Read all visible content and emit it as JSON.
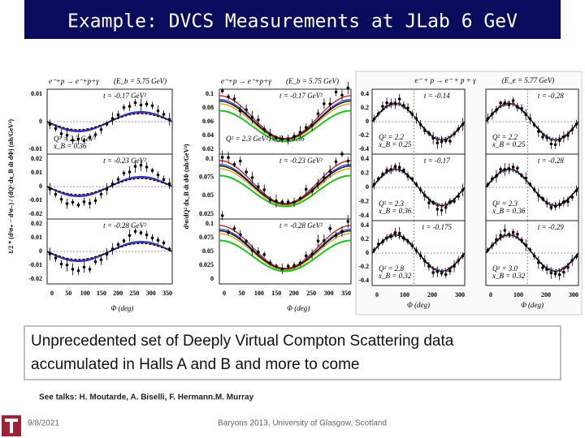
{
  "header": {
    "title": "Example: DVCS Measurements at JLab 6 GeV"
  },
  "figures": [
    {
      "reaction": "e⁻+p → e⁻+p+γ",
      "beam": "(E_b = 5.75 GeV)",
      "y_label": "1/2 * (d⁴σ₊ − d⁴σ₋) / (dQ² dx_B dt dΦ) (nb/GeV⁴)",
      "x_label": "Φ (deg)",
      "x_ticks": [
        "0",
        "50",
        "100",
        "150",
        "200",
        "250",
        "300",
        "350"
      ],
      "panels": [
        {
          "t": "t = -0.17 GeV²",
          "y_ticks": [
            "0.01",
            "0",
            "-0.01"
          ],
          "kinematics": [
            "Q² = 2.3 GeV²",
            "x_B = 0.36"
          ]
        },
        {
          "t": "t = -0.23 GeV²",
          "y_ticks": [
            "0.02",
            "0.01",
            "0",
            "-0.01",
            "-0.02"
          ]
        },
        {
          "t": "t = -0.28 GeV²",
          "y_ticks": [
            "0.02",
            "0.01",
            "0",
            "-0.01",
            "-0.02"
          ]
        }
      ]
    },
    {
      "reaction": "e⁻+p → e⁻+p+γ",
      "beam": "(E_b = 5.75 GeV)",
      "y_label": "d⁴σ/dQ² dx_B dt dΦ (nb/GeV⁴)",
      "x_label": "Φ (deg)",
      "x_ticks": [
        "0",
        "50",
        "100",
        "150",
        "200",
        "250",
        "300",
        "350"
      ],
      "panels": [
        {
          "t": "t = -0.17 GeV²",
          "y_ticks": [
            "0.1",
            "0.08",
            "0.06",
            "0.04",
            "0.02"
          ],
          "kinematics": [
            "Q² = 2.3 GeV², x_B = 0.36"
          ]
        },
        {
          "t": "t = -0.23 GeV²",
          "y_ticks": [
            "0.1",
            "0.075",
            "0.05",
            "0.025"
          ]
        },
        {
          "t": "t = -0.28 GeV²",
          "y_ticks": [
            "0.1",
            "0.075",
            "0.05",
            "0.025",
            "0"
          ]
        }
      ]
    },
    {
      "reaction": "e⁻ + p → e⁻ + p + γ",
      "beam": "(E_e = 5.77 GeV)",
      "x_label": "Φ (deg)",
      "x_ticks": [
        "0",
        "100",
        "200",
        "300"
      ],
      "y_ticks": [
        "0.4",
        "0.2",
        "0",
        "-0.2",
        "-0.4"
      ],
      "panels": [
        {
          "t": "t = -0.14",
          "kinematics": [
            "Q² = 2.2",
            "x_B = 0.25"
          ]
        },
        {
          "t": "t = -0.17",
          "kinematics": [
            "Q² = 2.3",
            "x_B = 0.36"
          ]
        },
        {
          "t": "t = -0.175",
          "kinematics": [
            "Q² = 2.8",
            "x_B = 0.32"
          ]
        },
        {
          "t": "t = -0.28",
          "kinematics": [
            "Q² = 2.2",
            "x_B = 0.25"
          ]
        },
        {
          "t": "t = -0.28",
          "kinematics": [
            "Q² = 2.3",
            "x_B = 0.36"
          ]
        },
        {
          "t": "t = -0.29",
          "kinematics": [
            "Q² = 3.0",
            "x_B = 0.32"
          ]
        }
      ]
    }
  ],
  "callout": {
    "lines": [
      "Unprecedented set of Deeply Virtual Compton Scattering data",
      "accumulated in Halls A and B and more to come"
    ]
  },
  "note": "See talks: H. Moutarde, A. Biselli, F. Hermann.M. Murray",
  "footer": {
    "date": "9/8/2021",
    "venue": "Baryons 2013, University of Glasgow, Scotland"
  }
}
